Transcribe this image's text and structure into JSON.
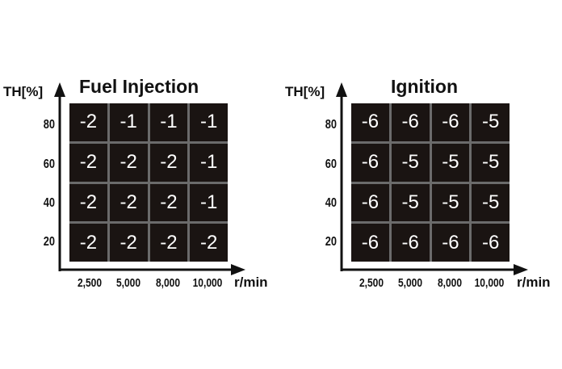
{
  "chart_data": [
    {
      "type": "heatmap",
      "title": "Fuel Injection",
      "xlabel": "r/min",
      "ylabel": "TH[%]",
      "x": [
        "2,500",
        "5,000",
        "8,000",
        "10,000"
      ],
      "y": [
        "80",
        "60",
        "40",
        "20"
      ],
      "values": [
        [
          "-2",
          "-1",
          "-1",
          "-1"
        ],
        [
          "-2",
          "-2",
          "-2",
          "-1"
        ],
        [
          "-2",
          "-2",
          "-2",
          "-1"
        ],
        [
          "-2",
          "-2",
          "-2",
          "-2"
        ]
      ],
      "colors": {
        "cell": "#1a1412",
        "grid": "#6b6b6b",
        "text": "#ffffff",
        "axis": "#111111"
      }
    },
    {
      "type": "heatmap",
      "title": "Ignition",
      "xlabel": "r/min",
      "ylabel": "TH[%]",
      "x": [
        "2,500",
        "5,000",
        "8,000",
        "10,000"
      ],
      "y": [
        "80",
        "60",
        "40",
        "20"
      ],
      "values": [
        [
          "-6",
          "-6",
          "-6",
          "-5"
        ],
        [
          "-6",
          "-5",
          "-5",
          "-5"
        ],
        [
          "-6",
          "-5",
          "-5",
          "-5"
        ],
        [
          "-6",
          "-6",
          "-6",
          "-6"
        ]
      ],
      "colors": {
        "cell": "#1a1412",
        "grid": "#6b6b6b",
        "text": "#ffffff",
        "axis": "#111111"
      }
    }
  ]
}
